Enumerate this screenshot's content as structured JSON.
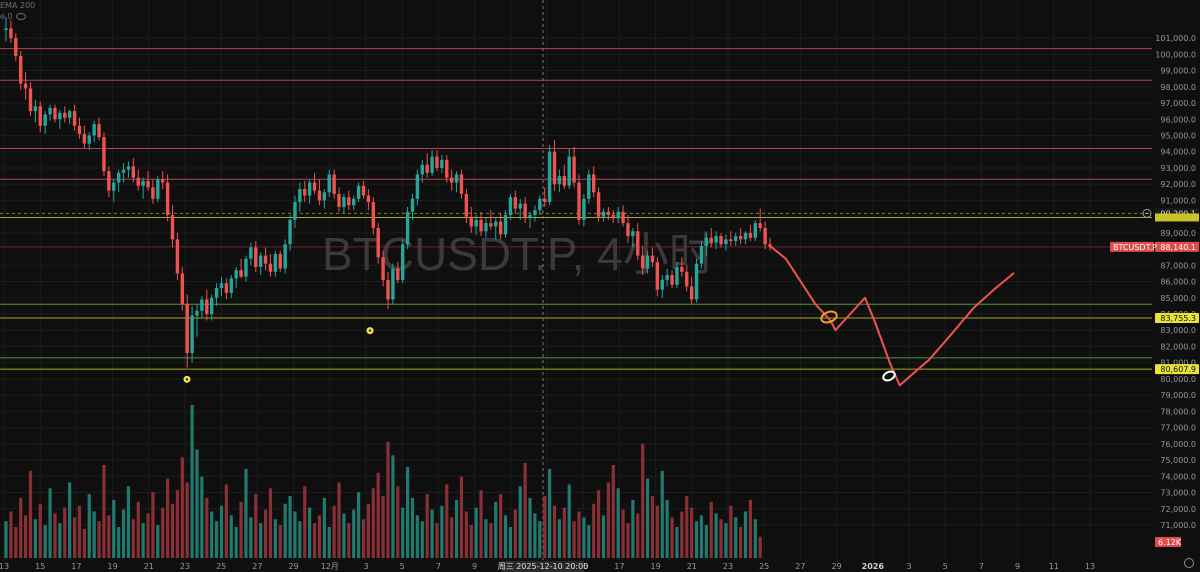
{
  "chart_data": {
    "type": "candlestick",
    "title": "BTCUSDT.P, 4小时",
    "symbol_label": "BTCUSDT.P",
    "legend": {
      "line1": "EMA 200",
      "line2": "e 0"
    },
    "y_axis": {
      "range": [
        70200,
        102300
      ],
      "ticks": [
        101000,
        100000,
        99000,
        98000,
        97000,
        96000,
        95000,
        94000,
        93000,
        92000,
        91000,
        89000,
        87000,
        86000,
        85000,
        84000,
        83000,
        82000,
        81000,
        80000,
        79000,
        78000,
        77000,
        76000,
        75000,
        74000,
        73000,
        72000,
        71000
      ],
      "tick_labels": [
        "101,000.0",
        "100,000.0",
        "99,000.0",
        "98,000.0",
        "97,000.0",
        "96,000.0",
        "95,000.0",
        "94,000.0",
        "93,000.0",
        "92,000.0",
        "91,000.0",
        "89,000.0",
        "87,000.0",
        "86,000.0",
        "85,000.0",
        "84,000.0",
        "83,000.0",
        "82,000.0",
        "81,000.0",
        "80,000.0",
        "79,000.0",
        "78,000.0",
        "77,000.0",
        "76,000.0",
        "75,000.0",
        "74,000.0",
        "73,000.0",
        "72,000.0",
        "71,000.0"
      ]
    },
    "x_axis": {
      "labels": [
        "13",
        "15",
        "17",
        "19",
        "21",
        "23",
        "25",
        "27",
        "29",
        "12月",
        "3",
        "5",
        "7",
        "9",
        "11",
        "13",
        "15",
        "17",
        "19",
        "21",
        "23",
        "25",
        "27",
        "29",
        "2026",
        "3",
        "5",
        "7",
        "9",
        "11",
        "13"
      ],
      "crosshair_label": "周三 2025-12-10  20:00"
    },
    "price_tags": [
      {
        "value": 90200.1,
        "label": "90,200.1",
        "style": "crosshair"
      },
      {
        "value": 88140.1,
        "label": "88,140.1",
        "prefix": "BTCUSDT.P",
        "style": "last"
      },
      {
        "value": 83755.3,
        "label": "83,755.3",
        "style": "yellow"
      },
      {
        "value": 80607.9,
        "label": "80,607.9",
        "style": "yellow"
      },
      {
        "value": null,
        "label": "6.12K",
        "style": "volume"
      }
    ],
    "resistance_lines": [
      100350,
      98400,
      94200,
      92300
    ],
    "yellow_lines": [
      89950,
      83755.3,
      80607.9
    ],
    "support_lines": [
      84600,
      81300
    ],
    "candles": [
      [
        101500,
        102300,
        100800,
        101600
      ],
      [
        101600,
        102100,
        100700,
        101000
      ],
      [
        101000,
        101300,
        99600,
        99900
      ],
      [
        99900,
        100200,
        97800,
        98200
      ],
      [
        98200,
        98900,
        97200,
        97900
      ],
      [
        97900,
        98300,
        96200,
        96500
      ],
      [
        96500,
        97200,
        95800,
        96800
      ],
      [
        96800,
        97100,
        95200,
        95600
      ],
      [
        95600,
        96500,
        95100,
        96300
      ],
      [
        96300,
        96900,
        95900,
        96700
      ],
      [
        96700,
        96900,
        95800,
        96000
      ],
      [
        96000,
        96600,
        95400,
        96400
      ],
      [
        96400,
        96800,
        95800,
        96100
      ],
      [
        96100,
        96600,
        95700,
        96500
      ],
      [
        96500,
        96900,
        95300,
        95600
      ],
      [
        95600,
        96100,
        94800,
        95100
      ],
      [
        95100,
        95600,
        94200,
        94500
      ],
      [
        94500,
        95200,
        94100,
        95000
      ],
      [
        95000,
        95900,
        94600,
        95700
      ],
      [
        95700,
        96100,
        94700,
        94900
      ],
      [
        94900,
        95200,
        92500,
        92800
      ],
      [
        92800,
        93100,
        91200,
        91600
      ],
      [
        91600,
        92300,
        90900,
        92100
      ],
      [
        92100,
        92900,
        91500,
        92700
      ],
      [
        92700,
        93300,
        92100,
        92900
      ],
      [
        92900,
        93400,
        92400,
        93100
      ],
      [
        93100,
        93600,
        92100,
        92400
      ],
      [
        92400,
        92900,
        91600,
        91900
      ],
      [
        91900,
        92400,
        91100,
        92200
      ],
      [
        92200,
        92800,
        91600,
        91800
      ],
      [
        91800,
        92300,
        90800,
        91100
      ],
      [
        91100,
        92500,
        90900,
        92300
      ],
      [
        92300,
        92800,
        91700,
        92100
      ],
      [
        92100,
        92600,
        89700,
        90100
      ],
      [
        90100,
        90700,
        88100,
        88600
      ],
      [
        88600,
        89000,
        86100,
        86500
      ],
      [
        86500,
        86900,
        84200,
        84600
      ],
      [
        84600,
        85200,
        80700,
        81600
      ],
      [
        81600,
        84500,
        81000,
        83900
      ],
      [
        83900,
        84600,
        82600,
        84200
      ],
      [
        84200,
        85100,
        83800,
        84900
      ],
      [
        84900,
        85500,
        83600,
        84000
      ],
      [
        84000,
        85200,
        83600,
        85000
      ],
      [
        85000,
        85900,
        84500,
        85600
      ],
      [
        85600,
        86300,
        85100,
        85900
      ],
      [
        85900,
        86200,
        84900,
        85300
      ],
      [
        85300,
        86400,
        85000,
        86200
      ],
      [
        86200,
        86900,
        85600,
        86700
      ],
      [
        86700,
        87400,
        86200,
        86300
      ],
      [
        86300,
        87600,
        86000,
        87400
      ],
      [
        87400,
        88400,
        87000,
        88100
      ],
      [
        88100,
        88500,
        86600,
        86900
      ],
      [
        86900,
        87800,
        86400,
        87600
      ],
      [
        87600,
        88100,
        86700,
        87100
      ],
      [
        87100,
        87700,
        86300,
        86600
      ],
      [
        86600,
        87900,
        86300,
        87700
      ],
      [
        87700,
        87900,
        86600,
        86800
      ],
      [
        86800,
        88600,
        86500,
        88300
      ],
      [
        88300,
        90100,
        87900,
        89800
      ],
      [
        89800,
        91300,
        89300,
        90900
      ],
      [
        90900,
        92100,
        90300,
        91700
      ],
      [
        91700,
        92200,
        90900,
        91300
      ],
      [
        91300,
        92300,
        90800,
        92100
      ],
      [
        92100,
        92700,
        91400,
        91600
      ],
      [
        91600,
        92300,
        90700,
        91000
      ],
      [
        91000,
        91700,
        90500,
        91500
      ],
      [
        91500,
        92900,
        91200,
        92600
      ],
      [
        92600,
        92900,
        91100,
        91400
      ],
      [
        91400,
        91800,
        90300,
        90600
      ],
      [
        90600,
        91400,
        90200,
        91200
      ],
      [
        91200,
        91600,
        90400,
        90700
      ],
      [
        90700,
        91300,
        90400,
        91100
      ],
      [
        91100,
        92100,
        90900,
        91900
      ],
      [
        91900,
        92200,
        91100,
        91300
      ],
      [
        91300,
        91700,
        90400,
        90900
      ],
      [
        90900,
        91200,
        88900,
        89300
      ],
      [
        89300,
        89600,
        87100,
        87500
      ],
      [
        87500,
        87900,
        85700,
        86100
      ],
      [
        86100,
        86600,
        84300,
        84900
      ],
      [
        84900,
        87100,
        84600,
        86800
      ],
      [
        86800,
        87200,
        85900,
        86100
      ],
      [
        86100,
        88600,
        85900,
        88300
      ],
      [
        88300,
        90600,
        88000,
        90300
      ],
      [
        90300,
        91400,
        89800,
        91100
      ],
      [
        91100,
        92900,
        90700,
        92600
      ],
      [
        92600,
        93500,
        92100,
        93200
      ],
      [
        93200,
        93900,
        92400,
        92700
      ],
      [
        92700,
        94100,
        92500,
        93700
      ],
      [
        93700,
        94100,
        92800,
        93000
      ],
      [
        93000,
        93800,
        92700,
        93500
      ],
      [
        93500,
        93800,
        92100,
        92400
      ],
      [
        92400,
        92900,
        91600,
        92100
      ],
      [
        92100,
        92800,
        91500,
        92600
      ],
      [
        92600,
        92900,
        91100,
        91400
      ],
      [
        91400,
        91700,
        89600,
        90000
      ],
      [
        90000,
        90600,
        89000,
        89400
      ],
      [
        89400,
        90100,
        88900,
        89800
      ],
      [
        89800,
        90300,
        88800,
        89100
      ],
      [
        89100,
        89900,
        88700,
        89600
      ],
      [
        89600,
        90400,
        89200,
        89400
      ],
      [
        89400,
        89900,
        88600,
        89700
      ],
      [
        89700,
        90200,
        88600,
        88900
      ],
      [
        88900,
        90400,
        88700,
        90100
      ],
      [
        90100,
        91400,
        89800,
        91200
      ],
      [
        91200,
        91600,
        90200,
        90500
      ],
      [
        90500,
        91100,
        89800,
        90800
      ],
      [
        90800,
        91200,
        89600,
        89900
      ],
      [
        89900,
        90300,
        89300,
        90100
      ],
      [
        90100,
        90700,
        89700,
        90400
      ],
      [
        90400,
        91300,
        90100,
        91100
      ],
      [
        91100,
        91800,
        90600,
        90900
      ],
      [
        90900,
        94400,
        90700,
        94000
      ],
      [
        94000,
        94700,
        91600,
        92000
      ],
      [
        92000,
        92900,
        91500,
        92500
      ],
      [
        92500,
        93200,
        91700,
        91900
      ],
      [
        91900,
        94200,
        91700,
        93700
      ],
      [
        93700,
        94300,
        91800,
        92100
      ],
      [
        92100,
        92600,
        89500,
        89800
      ],
      [
        89800,
        91400,
        89400,
        91100
      ],
      [
        91100,
        92900,
        90800,
        92600
      ],
      [
        92600,
        93100,
        91200,
        91500
      ],
      [
        91500,
        91800,
        89700,
        90000
      ],
      [
        90000,
        90500,
        89700,
        90300
      ],
      [
        90300,
        90600,
        89800,
        90100
      ],
      [
        90100,
        90400,
        89600,
        89900
      ],
      [
        89900,
        90600,
        89600,
        90300
      ],
      [
        90300,
        90700,
        89400,
        89600
      ],
      [
        89600,
        90100,
        88400,
        88800
      ],
      [
        88800,
        89300,
        88100,
        89100
      ],
      [
        89100,
        89600,
        87300,
        87600
      ],
      [
        87600,
        88200,
        86400,
        86800
      ],
      [
        86800,
        87900,
        86500,
        87600
      ],
      [
        87600,
        88100,
        86900,
        87200
      ],
      [
        87200,
        87500,
        85100,
        85500
      ],
      [
        85500,
        86400,
        85000,
        86100
      ],
      [
        86100,
        86800,
        85700,
        86400
      ],
      [
        86400,
        86700,
        85600,
        85800
      ],
      [
        85800,
        87200,
        85600,
        86900
      ],
      [
        86900,
        87500,
        86300,
        86600
      ],
      [
        86600,
        87000,
        85400,
        85700
      ],
      [
        85700,
        86300,
        84600,
        84900
      ],
      [
        84900,
        87400,
        84700,
        87100
      ],
      [
        87100,
        88500,
        86800,
        88200
      ],
      [
        88200,
        89000,
        87600,
        88700
      ],
      [
        88700,
        89300,
        88100,
        88400
      ],
      [
        88400,
        89100,
        88000,
        88800
      ],
      [
        88800,
        89000,
        88100,
        88300
      ],
      [
        88300,
        88900,
        87900,
        88600
      ],
      [
        88600,
        89100,
        88200,
        88500
      ],
      [
        88500,
        89000,
        88200,
        88800
      ],
      [
        88800,
        89300,
        88300,
        88600
      ],
      [
        88600,
        89100,
        88300,
        89000
      ],
      [
        89000,
        89500,
        88500,
        88700
      ],
      [
        88700,
        89800,
        88500,
        89600
      ],
      [
        89600,
        90500,
        89100,
        89300
      ],
      [
        89300,
        89700,
        88000,
        88300
      ],
      [
        88300,
        88700,
        87900,
        88140
      ]
    ],
    "volume_values": [
      1.9,
      2.4,
      1.6,
      3.1,
      2.2,
      4.5,
      2.0,
      2.8,
      1.7,
      3.6,
      2.3,
      1.8,
      2.6,
      3.9,
      2.1,
      2.7,
      1.5,
      3.3,
      2.4,
      1.9,
      4.8,
      2.2,
      3.0,
      1.6,
      2.5,
      3.7,
      2.0,
      2.9,
      1.8,
      2.3,
      3.4,
      1.7,
      2.6,
      4.1,
      2.8,
      3.5,
      5.2,
      3.9,
      7.9,
      5.6,
      4.2,
      3.1,
      2.4,
      1.9,
      2.7,
      3.8,
      2.2,
      1.6,
      2.9,
      4.6,
      2.1,
      3.3,
      1.8,
      2.5,
      3.6,
      2.0,
      1.7,
      2.8,
      3.2,
      2.4,
      1.9,
      3.7,
      2.6,
      1.8,
      2.2,
      3.1,
      1.6,
      2.7,
      3.9,
      2.3,
      1.8,
      2.5,
      3.4,
      2.0,
      2.8,
      3.6,
      4.4,
      3.2,
      6.0,
      5.3,
      3.7,
      2.6,
      4.7,
      3.1,
      2.2,
      1.9,
      3.3,
      2.5,
      1.8,
      2.7,
      3.8,
      2.1,
      3.0,
      4.2,
      2.4,
      1.7,
      2.6,
      3.5,
      2.0,
      1.8,
      2.9,
      3.3,
      2.2,
      1.6,
      2.5,
      3.7,
      4.9,
      3.1,
      2.3,
      1.9,
      3.2,
      4.6,
      2.7,
      2.0,
      2.6,
      3.8,
      1.9,
      2.4,
      2.1,
      1.7,
      2.8,
      3.5,
      2.2,
      3.9,
      4.8,
      3.6,
      2.5,
      1.8,
      3.0,
      2.3,
      5.9,
      4.1,
      3.2,
      2.7,
      4.5,
      3.0,
      2.1,
      1.6,
      2.4,
      3.2,
      2.6,
      1.9,
      2.2,
      1.7,
      2.9,
      2.3,
      2.0,
      1.8,
      2.7,
      2.1,
      1.6,
      2.4,
      3.0,
      2.0,
      1.1
    ]
  },
  "forecast": {
    "color": "#ef5350",
    "points": [
      [
        88140,
        0
      ],
      [
        87400,
        3
      ],
      [
        86000,
        6
      ],
      [
        84600,
        9
      ],
      [
        83600,
        12
      ],
      [
        83000,
        13
      ],
      [
        84000,
        16
      ],
      [
        85000,
        19
      ],
      [
        83500,
        21
      ],
      [
        81000,
        24
      ],
      [
        79600,
        26
      ],
      [
        80400,
        29
      ],
      [
        81200,
        32
      ],
      [
        82600,
        36
      ],
      [
        84400,
        41
      ],
      [
        85500,
        45
      ],
      [
        86500,
        49
      ]
    ]
  },
  "markers": {
    "low_dot_1_price": 80100,
    "low_dot_2_price": 83100
  }
}
